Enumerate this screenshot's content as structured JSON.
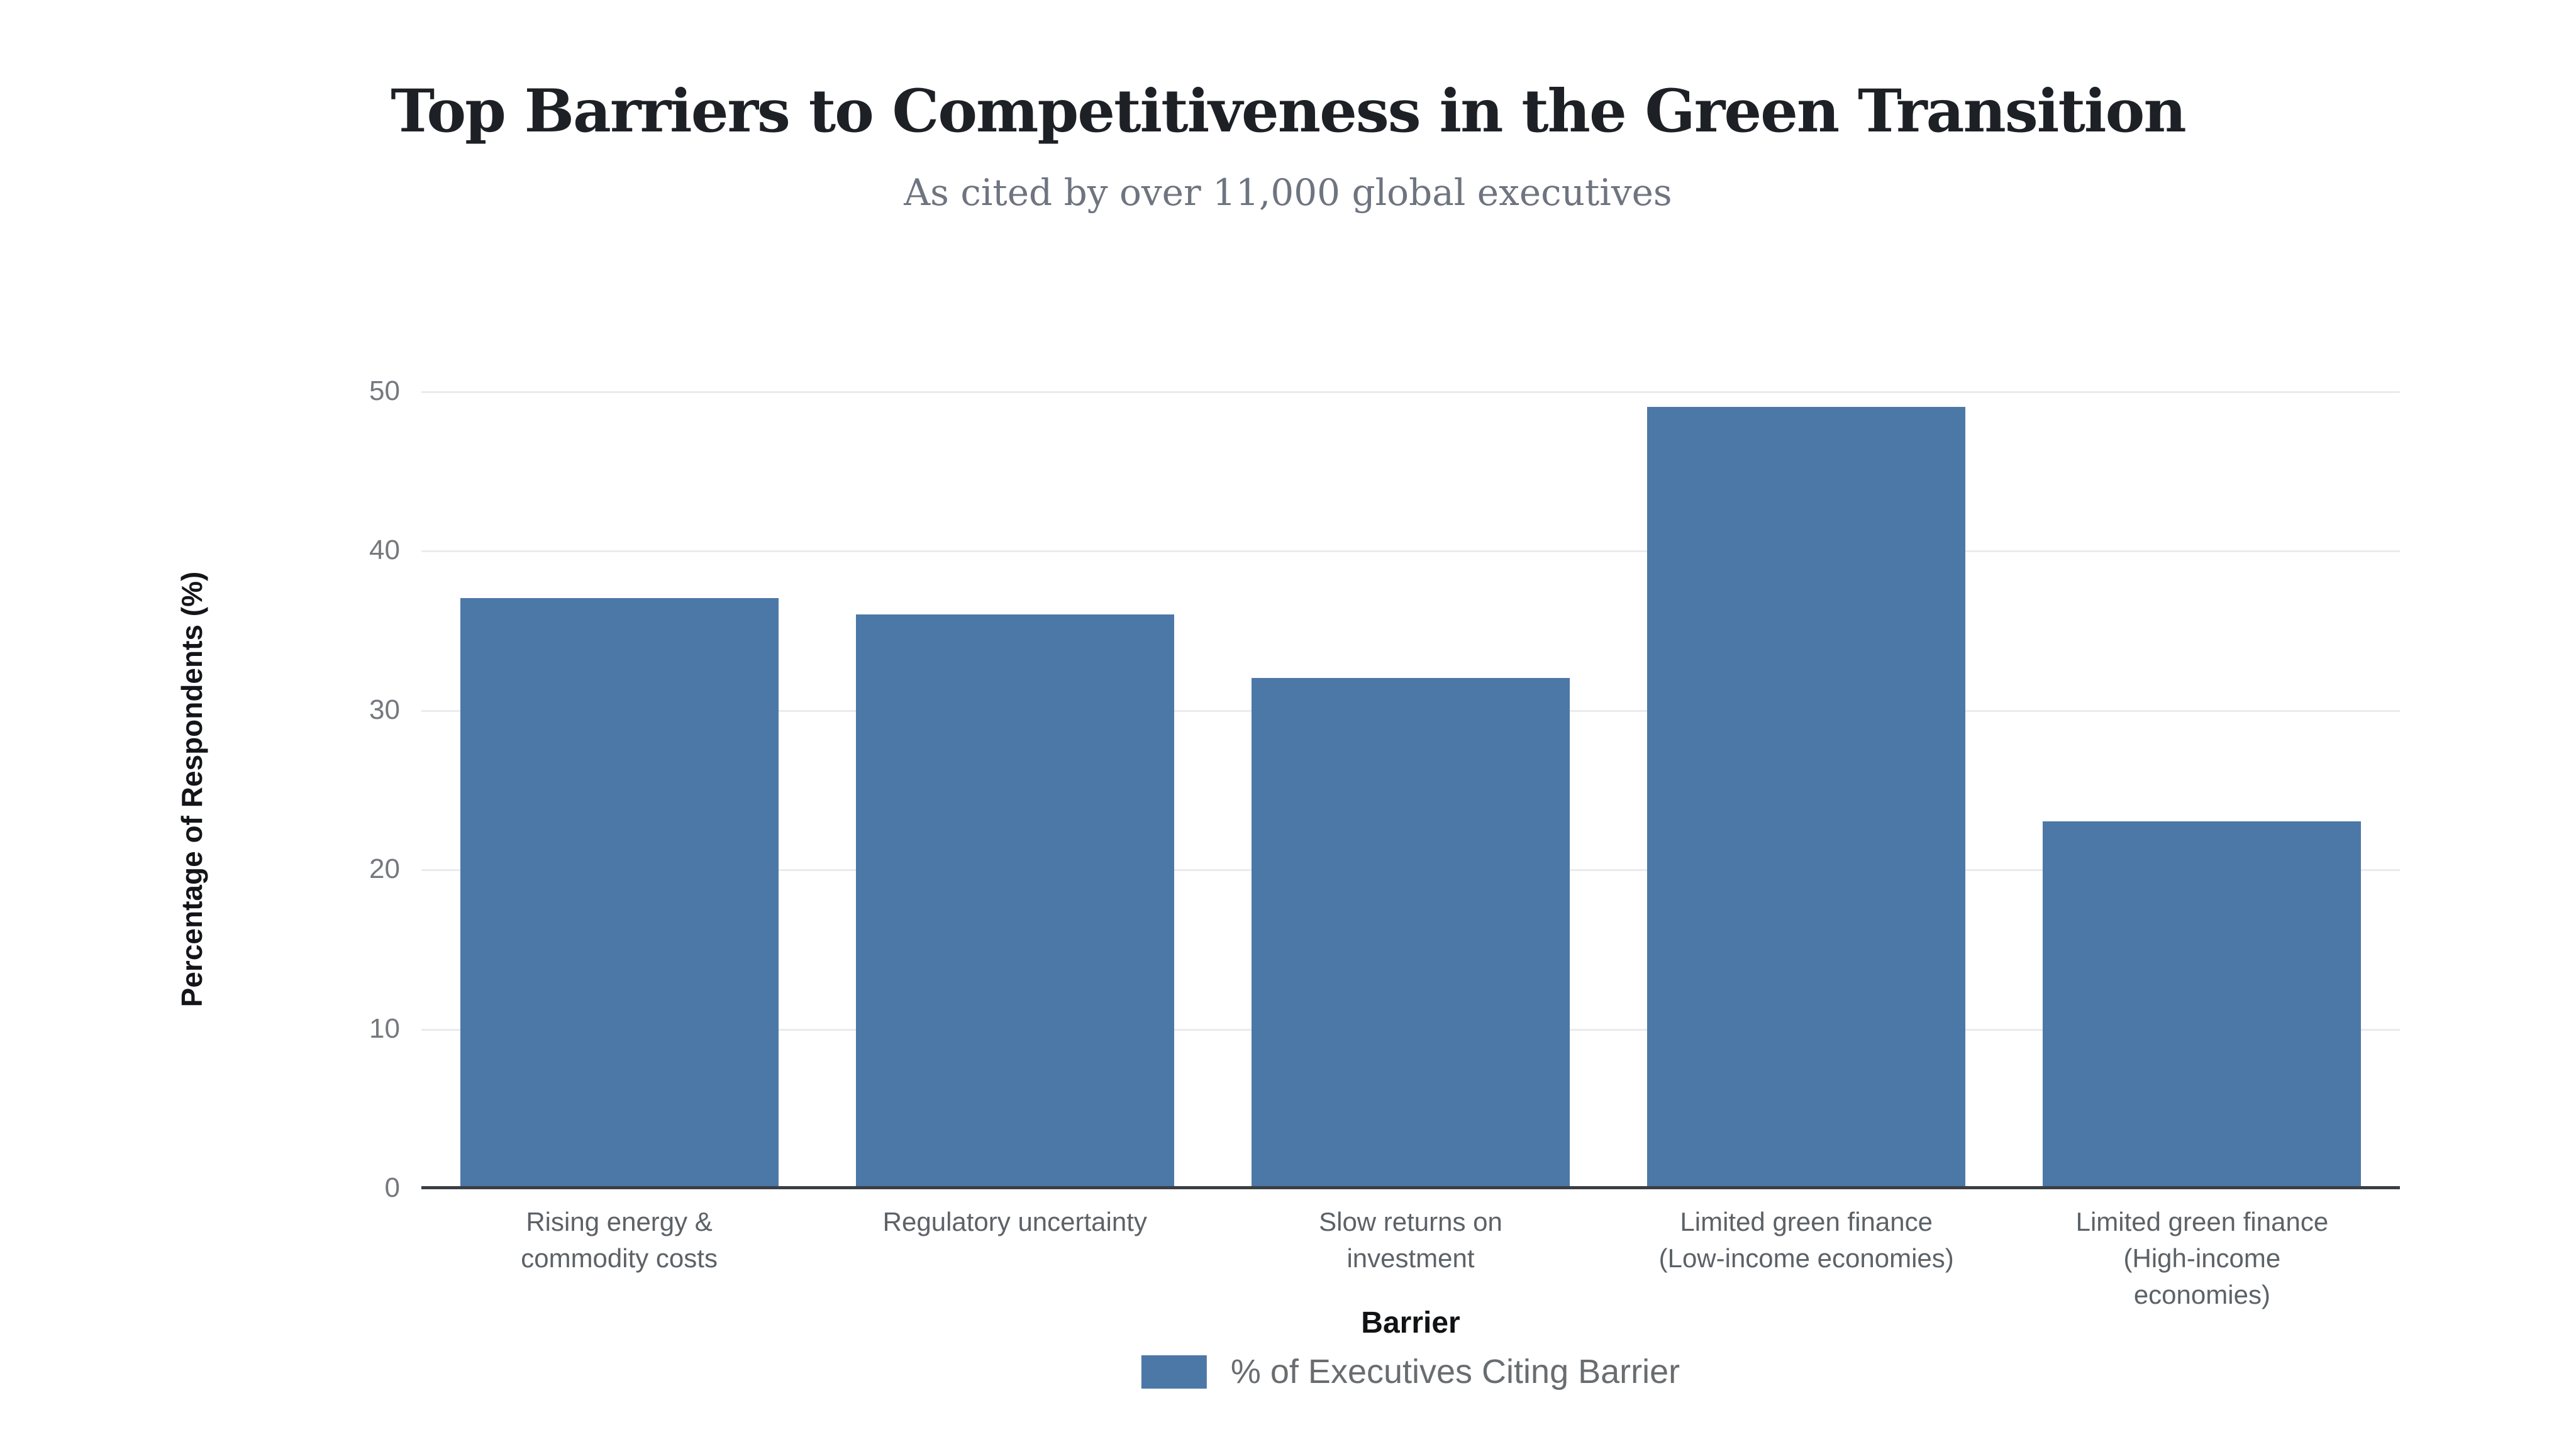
{
  "chart_data": {
    "type": "bar",
    "title": "Top Barriers to Competitiveness in the Green Transition",
    "subtitle": "As cited by over 11,000 global executives",
    "xlabel": "Barrier",
    "ylabel": "Percentage of Respondents (%)",
    "categories": [
      "Rising energy & commodity costs",
      "Regulatory uncertainty",
      "Slow returns on investment",
      "Limited green finance (Low-income economies)",
      "Limited green finance (High-income economies)"
    ],
    "category_label_lines": [
      [
        "Rising energy &",
        "commodity costs"
      ],
      [
        "Regulatory uncertainty"
      ],
      [
        "Slow returns on",
        "investment"
      ],
      [
        "Limited green finance",
        "(Low-income economies)"
      ],
      [
        "Limited green finance",
        "(High-income",
        "economies)"
      ]
    ],
    "series": [
      {
        "name": "% of Executives Citing Barrier",
        "values": [
          37,
          36,
          32,
          49,
          23
        ]
      }
    ],
    "ylim": [
      0,
      50
    ],
    "yticks": [
      0,
      10,
      20,
      30,
      40,
      50
    ],
    "grid": "horizontal",
    "legend_position": "bottom",
    "colors": {
      "bar": "#4C78A8",
      "gridline": "#E9EBEE",
      "axis_line": "#3B3F44",
      "background": "#FFFFFF"
    }
  }
}
